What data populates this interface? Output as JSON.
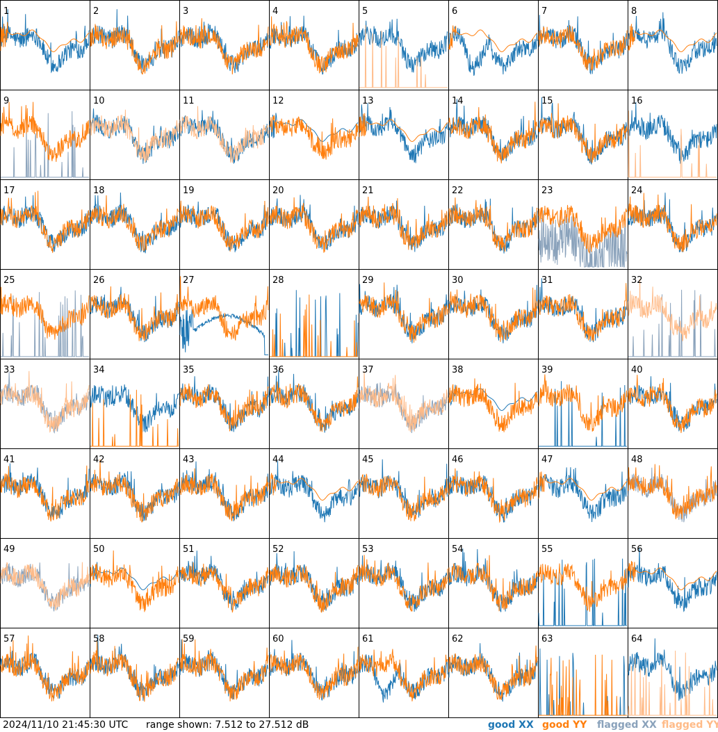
{
  "chart_data": {
    "type": "line",
    "layout": "8x8 small multiples, one panel per tile",
    "footer": {
      "timestamp": "2024/11/10 21:45:30 UTC",
      "range_text": "range shown: 7.512 to 27.512 dB"
    },
    "ylim": [
      7.512,
      27.512
    ],
    "y_unit": "dB",
    "legend": [
      {
        "label": "good XX",
        "color": "#1f77b4"
      },
      {
        "label": "good YY",
        "color": "#ff7f0e"
      },
      {
        "label": "flagged XX",
        "color": "#8aa2bb"
      },
      {
        "label": "flagged YY",
        "color": "#ffbb88"
      }
    ],
    "tiles": [
      {
        "id": "1",
        "xx": "good",
        "yy": "good",
        "xx_mode": "normal",
        "yy_mode": "smooth"
      },
      {
        "id": "2",
        "xx": "good",
        "yy": "good",
        "xx_mode": "normal",
        "yy_mode": "normal"
      },
      {
        "id": "3",
        "xx": "good",
        "yy": "good",
        "xx_mode": "normal",
        "yy_mode": "normal"
      },
      {
        "id": "4",
        "xx": "good",
        "yy": "good",
        "xx_mode": "normal",
        "yy_mode": "normal"
      },
      {
        "id": "5",
        "xx": "good",
        "yy": "flagged",
        "xx_mode": "normal",
        "yy_mode": "spiky"
      },
      {
        "id": "6",
        "xx": "good",
        "yy": "good",
        "xx_mode": "dip",
        "yy_mode": "smooth"
      },
      {
        "id": "7",
        "xx": "good",
        "yy": "good",
        "xx_mode": "normal",
        "yy_mode": "normal"
      },
      {
        "id": "8",
        "xx": "good",
        "yy": "good",
        "xx_mode": "normal",
        "yy_mode": "smooth"
      },
      {
        "id": "9",
        "xx": "flagged",
        "yy": "good",
        "xx_mode": "spiky",
        "yy_mode": "normal"
      },
      {
        "id": "10",
        "xx": "good",
        "yy": "flagged",
        "xx_mode": "normal",
        "yy_mode": "normal"
      },
      {
        "id": "11",
        "xx": "good",
        "yy": "flagged",
        "xx_mode": "normal",
        "yy_mode": "normal"
      },
      {
        "id": "12",
        "xx": "good",
        "yy": "good",
        "xx_mode": "smooth",
        "yy_mode": "normal"
      },
      {
        "id": "13",
        "xx": "good",
        "yy": "good",
        "xx_mode": "normal",
        "yy_mode": "smooth"
      },
      {
        "id": "14",
        "xx": "good",
        "yy": "good",
        "xx_mode": "normal",
        "yy_mode": "normal"
      },
      {
        "id": "15",
        "xx": "good",
        "yy": "good",
        "xx_mode": "normal",
        "yy_mode": "normal"
      },
      {
        "id": "16",
        "xx": "good",
        "yy": "flagged",
        "xx_mode": "normal",
        "yy_mode": "spiky"
      },
      {
        "id": "17",
        "xx": "good",
        "yy": "good",
        "xx_mode": "normal",
        "yy_mode": "normal"
      },
      {
        "id": "18",
        "xx": "good",
        "yy": "good",
        "xx_mode": "normal",
        "yy_mode": "normal"
      },
      {
        "id": "19",
        "xx": "good",
        "yy": "good",
        "xx_mode": "normal",
        "yy_mode": "normal"
      },
      {
        "id": "20",
        "xx": "good",
        "yy": "good",
        "xx_mode": "normal",
        "yy_mode": "normal"
      },
      {
        "id": "21",
        "xx": "good",
        "yy": "good",
        "xx_mode": "normal",
        "yy_mode": "normal"
      },
      {
        "id": "22",
        "xx": "good",
        "yy": "good",
        "xx_mode": "normal",
        "yy_mode": "normal"
      },
      {
        "id": "23",
        "xx": "flagged",
        "yy": "good",
        "xx_mode": "noisy",
        "yy_mode": "normal"
      },
      {
        "id": "24",
        "xx": "good",
        "yy": "good",
        "xx_mode": "normal",
        "yy_mode": "normal"
      },
      {
        "id": "25",
        "xx": "flagged",
        "yy": "good",
        "xx_mode": "spiky",
        "yy_mode": "normal"
      },
      {
        "id": "26",
        "xx": "good",
        "yy": "good",
        "xx_mode": "normal",
        "yy_mode": "normal"
      },
      {
        "id": "27",
        "xx": "good",
        "yy": "good",
        "xx_mode": "arch",
        "yy_mode": "normal"
      },
      {
        "id": "28",
        "xx": "good",
        "yy": "good",
        "xx_mode": "spiky",
        "yy_mode": "spiky"
      },
      {
        "id": "29",
        "xx": "good",
        "yy": "good",
        "xx_mode": "normal",
        "yy_mode": "normal"
      },
      {
        "id": "30",
        "xx": "good",
        "yy": "good",
        "xx_mode": "normal",
        "yy_mode": "normal"
      },
      {
        "id": "31",
        "xx": "good",
        "yy": "good",
        "xx_mode": "normal",
        "yy_mode": "normal"
      },
      {
        "id": "32",
        "xx": "flagged",
        "yy": "flagged",
        "xx_mode": "spiky",
        "yy_mode": "normal"
      },
      {
        "id": "33",
        "xx": "flagged",
        "yy": "flagged",
        "xx_mode": "normal",
        "yy_mode": "normal"
      },
      {
        "id": "34",
        "xx": "good",
        "yy": "good",
        "xx_mode": "normal",
        "yy_mode": "spiky"
      },
      {
        "id": "35",
        "xx": "good",
        "yy": "good",
        "xx_mode": "normal",
        "yy_mode": "normal"
      },
      {
        "id": "36",
        "xx": "good",
        "yy": "good",
        "xx_mode": "normal",
        "yy_mode": "normal"
      },
      {
        "id": "37",
        "xx": "flagged",
        "yy": "flagged",
        "xx_mode": "normal",
        "yy_mode": "normal"
      },
      {
        "id": "38",
        "xx": "good",
        "yy": "good",
        "xx_mode": "smooth",
        "yy_mode": "normal"
      },
      {
        "id": "39",
        "xx": "good",
        "yy": "good",
        "xx_mode": "spiky",
        "yy_mode": "normal"
      },
      {
        "id": "40",
        "xx": "good",
        "yy": "good",
        "xx_mode": "normal",
        "yy_mode": "normal"
      },
      {
        "id": "41",
        "xx": "good",
        "yy": "good",
        "xx_mode": "normal",
        "yy_mode": "normal"
      },
      {
        "id": "42",
        "xx": "good",
        "yy": "good",
        "xx_mode": "normal",
        "yy_mode": "normal"
      },
      {
        "id": "43",
        "xx": "good",
        "yy": "good",
        "xx_mode": "normal",
        "yy_mode": "normal"
      },
      {
        "id": "44",
        "xx": "good",
        "yy": "good",
        "xx_mode": "normal",
        "yy_mode": "smooth"
      },
      {
        "id": "45",
        "xx": "good",
        "yy": "good",
        "xx_mode": "normal",
        "yy_mode": "normal"
      },
      {
        "id": "46",
        "xx": "good",
        "yy": "good",
        "xx_mode": "normal",
        "yy_mode": "normal"
      },
      {
        "id": "47",
        "xx": "good",
        "yy": "good",
        "xx_mode": "normal",
        "yy_mode": "smooth"
      },
      {
        "id": "48",
        "xx": "flagged",
        "yy": "good",
        "xx_mode": "normal",
        "yy_mode": "normal"
      },
      {
        "id": "49",
        "xx": "flagged",
        "yy": "flagged",
        "xx_mode": "normal",
        "yy_mode": "normal"
      },
      {
        "id": "50",
        "xx": "good",
        "yy": "good",
        "xx_mode": "smooth",
        "yy_mode": "normal"
      },
      {
        "id": "51",
        "xx": "good",
        "yy": "good",
        "xx_mode": "normal",
        "yy_mode": "normal"
      },
      {
        "id": "52",
        "xx": "good",
        "yy": "good",
        "xx_mode": "normal",
        "yy_mode": "normal"
      },
      {
        "id": "53",
        "xx": "good",
        "yy": "good",
        "xx_mode": "normal",
        "yy_mode": "normal"
      },
      {
        "id": "54",
        "xx": "good",
        "yy": "good",
        "xx_mode": "normal",
        "yy_mode": "normal"
      },
      {
        "id": "55",
        "xx": "good",
        "yy": "good",
        "xx_mode": "spiky",
        "yy_mode": "normal"
      },
      {
        "id": "56",
        "xx": "good",
        "yy": "good",
        "xx_mode": "normal",
        "yy_mode": "smooth"
      },
      {
        "id": "57",
        "xx": "good",
        "yy": "good",
        "xx_mode": "normal",
        "yy_mode": "normal"
      },
      {
        "id": "58",
        "xx": "good",
        "yy": "good",
        "xx_mode": "normal",
        "yy_mode": "normal"
      },
      {
        "id": "59",
        "xx": "good",
        "yy": "good",
        "xx_mode": "normal",
        "yy_mode": "normal"
      },
      {
        "id": "60",
        "xx": "good",
        "yy": "good",
        "xx_mode": "normal",
        "yy_mode": "normal"
      },
      {
        "id": "61",
        "xx": "good",
        "yy": "good",
        "xx_mode": "dip",
        "yy_mode": "normal"
      },
      {
        "id": "62",
        "xx": "good",
        "yy": "good",
        "xx_mode": "normal",
        "yy_mode": "normal"
      },
      {
        "id": "63",
        "xx": "good",
        "yy": "good",
        "xx_mode": "spiky",
        "yy_mode": "spiky"
      },
      {
        "id": "64",
        "xx": "good",
        "yy": "flagged",
        "xx_mode": "normal",
        "yy_mode": "spiky"
      }
    ]
  }
}
